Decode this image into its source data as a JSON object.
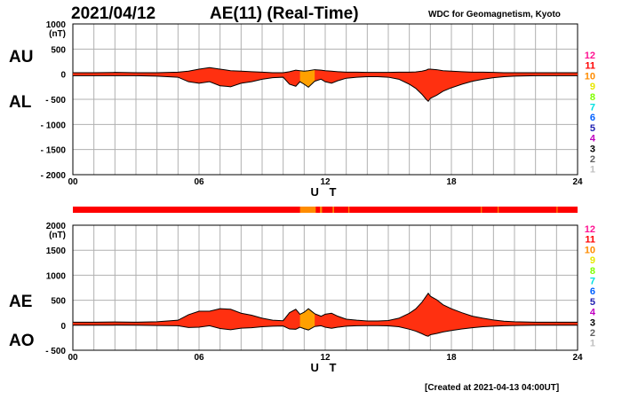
{
  "header": {
    "date": "2021/04/12",
    "title": "AE(11) (Real-Time)",
    "source": "WDC for Geomagnetism, Kyoto"
  },
  "footer": {
    "created": "[Created at 2021-04-13 04:00UT]"
  },
  "colors": {
    "fill": "#ff3010",
    "fill_partial": "#ffa000",
    "grid": "#b0b0b0",
    "curve": "#000000"
  },
  "station_count_legend": {
    "levels": [
      "12",
      "11",
      "10",
      "9",
      "8",
      "7",
      "6",
      "5",
      "4",
      "3",
      "2",
      "1"
    ],
    "colors": [
      "#ff1493",
      "#ff0000",
      "#ff8c00",
      "#e8e800",
      "#80ff00",
      "#00e0e0",
      "#0060ff",
      "#2020b0",
      "#c000c0",
      "#000000",
      "#606060",
      "#c0c0c0"
    ]
  },
  "station_bar": {
    "default_level": "11",
    "segments": [
      {
        "from": 10.8,
        "to": 11.55,
        "level": "10"
      },
      {
        "from": 11.75,
        "to": 11.85,
        "level": "10"
      },
      {
        "from": 12.35,
        "to": 12.42,
        "level": "10"
      },
      {
        "from": 13.1,
        "to": 13.15,
        "level": "10"
      },
      {
        "from": 19.4,
        "to": 19.45,
        "level": "10"
      },
      {
        "from": 20.2,
        "to": 20.25,
        "level": "10"
      },
      {
        "from": 23.0,
        "to": 23.05,
        "level": "10"
      }
    ]
  },
  "chart_data": [
    {
      "type": "area",
      "title": "AE(11) (Real-Time)",
      "panel": "AU / AL",
      "series_labels": [
        "AU",
        "AL"
      ],
      "xlabel": "U T",
      "ylabel": "(nT)",
      "xlim": [
        0,
        24
      ],
      "xticks": [
        "00",
        "06",
        "12",
        "18",
        "24"
      ],
      "ylim": [
        -2000,
        1000
      ],
      "yticks": [
        "1000",
        "500",
        "0",
        "- 500",
        "- 1000",
        "- 1500",
        "- 2000"
      ],
      "grid": true,
      "x": [
        0,
        1,
        2,
        3,
        4,
        5,
        5.5,
        6,
        6.5,
        7,
        7.5,
        8,
        8.5,
        9,
        9.5,
        10,
        10.3,
        10.6,
        10.8,
        11,
        11.2,
        11.5,
        11.8,
        12,
        12.3,
        12.6,
        13,
        13.5,
        14,
        14.5,
        15,
        15.5,
        16,
        16.3,
        16.6,
        16.8,
        16.9,
        17,
        17.3,
        17.6,
        18,
        18.5,
        19,
        19.5,
        20,
        20.5,
        21,
        22,
        23,
        24
      ],
      "series": [
        {
          "name": "AU",
          "values": [
            30,
            30,
            35,
            30,
            30,
            40,
            60,
            100,
            130,
            100,
            70,
            60,
            50,
            40,
            30,
            30,
            50,
            80,
            70,
            60,
            70,
            90,
            80,
            70,
            60,
            50,
            40,
            40,
            35,
            35,
            35,
            40,
            40,
            45,
            60,
            80,
            100,
            100,
            90,
            70,
            60,
            50,
            40,
            40,
            35,
            30,
            30,
            30,
            30,
            30
          ]
        },
        {
          "name": "AL",
          "values": [
            -30,
            -30,
            -30,
            -30,
            -40,
            -60,
            -150,
            -180,
            -150,
            -230,
            -250,
            -180,
            -150,
            -100,
            -70,
            -60,
            -200,
            -240,
            -150,
            -200,
            -260,
            -140,
            -100,
            -150,
            -180,
            -130,
            -80,
            -60,
            -50,
            -50,
            -60,
            -100,
            -200,
            -280,
            -400,
            -500,
            -540,
            -480,
            -420,
            -340,
            -270,
            -200,
            -140,
            -100,
            -70,
            -50,
            -40,
            -30,
            -30,
            -30
          ]
        }
      ]
    },
    {
      "type": "area",
      "title": "AE(11) (Real-Time)",
      "panel": "AE / AO",
      "series_labels": [
        "AE",
        "AO"
      ],
      "xlabel": "U T",
      "ylabel": "(nT)",
      "xlim": [
        0,
        24
      ],
      "xticks": [
        "00",
        "06",
        "12",
        "18",
        "24"
      ],
      "ylim": [
        -500,
        2000
      ],
      "yticks": [
        "2000",
        "1500",
        "1000",
        "500",
        "0",
        "- 500"
      ],
      "grid": true,
      "x": [
        0,
        1,
        2,
        3,
        4,
        5,
        5.5,
        6,
        6.5,
        7,
        7.5,
        8,
        8.5,
        9,
        9.5,
        10,
        10.3,
        10.6,
        10.8,
        11,
        11.2,
        11.5,
        11.8,
        12,
        12.3,
        12.6,
        13,
        13.5,
        14,
        14.5,
        15,
        15.5,
        16,
        16.3,
        16.6,
        16.8,
        16.9,
        17,
        17.3,
        17.6,
        18,
        18.5,
        19,
        19.5,
        20,
        20.5,
        21,
        22,
        23,
        24
      ],
      "series": [
        {
          "name": "AE",
          "values": [
            60,
            60,
            65,
            60,
            70,
            100,
            210,
            280,
            280,
            330,
            320,
            240,
            200,
            140,
            100,
            90,
            250,
            320,
            220,
            260,
            330,
            230,
            180,
            220,
            240,
            180,
            120,
            100,
            85,
            85,
            95,
            140,
            240,
            325,
            460,
            580,
            640,
            580,
            510,
            410,
            330,
            250,
            180,
            140,
            105,
            80,
            70,
            60,
            60,
            60
          ]
        },
        {
          "name": "AO",
          "values": [
            0,
            0,
            2,
            0,
            -5,
            -10,
            -45,
            -40,
            -10,
            -65,
            -90,
            -60,
            -50,
            -30,
            -20,
            -15,
            -75,
            -80,
            -40,
            -70,
            -95,
            -25,
            -10,
            -40,
            -60,
            -40,
            -20,
            -10,
            -8,
            -8,
            -12,
            -30,
            -80,
            -118,
            -170,
            -210,
            -220,
            -190,
            -165,
            -135,
            -105,
            -75,
            -50,
            -30,
            -18,
            -10,
            -5,
            0,
            0,
            0
          ]
        }
      ]
    }
  ]
}
